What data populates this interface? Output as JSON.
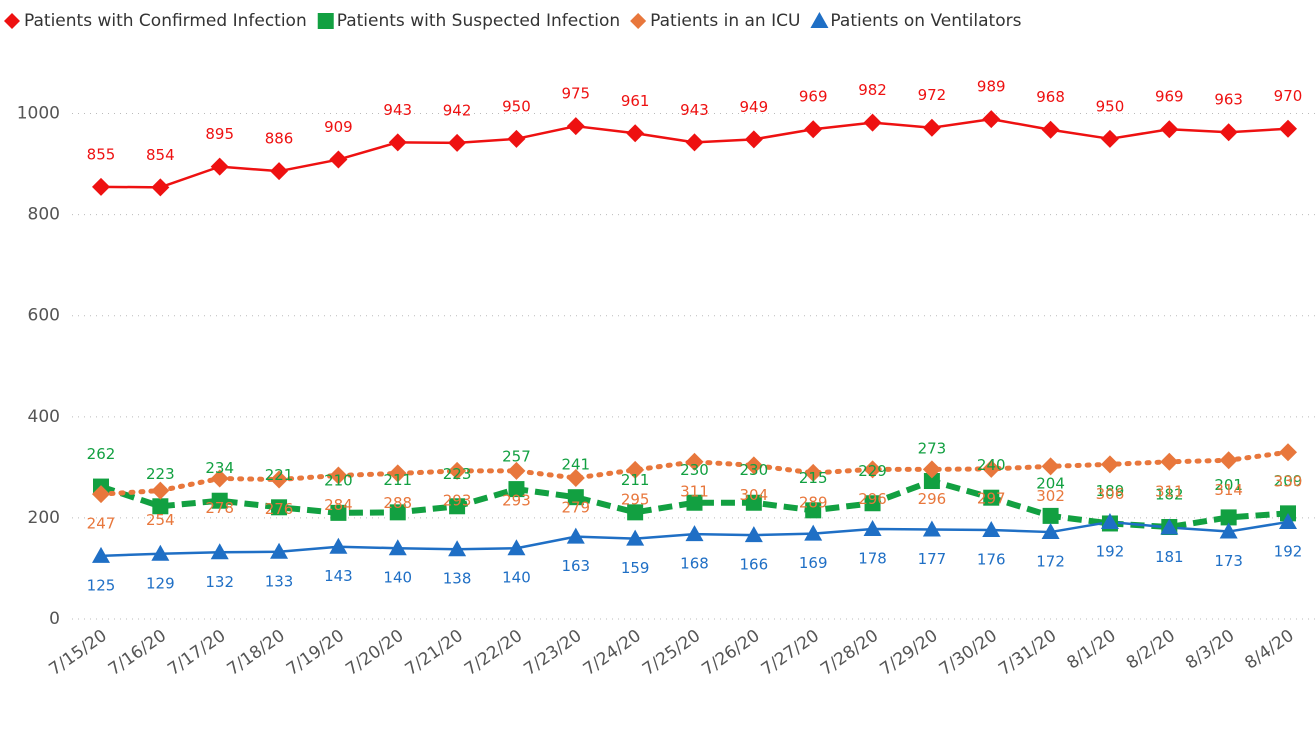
{
  "chart_data": {
    "type": "line",
    "categories": [
      "7/15/20",
      "7/16/20",
      "7/17/20",
      "7/18/20",
      "7/19/20",
      "7/20/20",
      "7/21/20",
      "7/22/20",
      "7/23/20",
      "7/24/20",
      "7/25/20",
      "7/26/20",
      "7/27/20",
      "7/28/20",
      "7/29/20",
      "7/30/20",
      "7/31/20",
      "8/1/20",
      "8/2/20",
      "8/3/20",
      "8/4/20"
    ],
    "series": [
      {
        "name": "Patients with Confirmed Infection",
        "color": "#ee1111",
        "marker": "diamond",
        "line_style": "solid",
        "label_position": "above",
        "values": [
          855,
          854,
          895,
          886,
          909,
          943,
          942,
          950,
          975,
          961,
          943,
          949,
          969,
          982,
          972,
          989,
          968,
          950,
          969,
          963,
          970
        ]
      },
      {
        "name": "Patients with Suspected Infection",
        "color": "#12a041",
        "marker": "square",
        "line_style": "dashed",
        "label_position": "above",
        "values": [
          262,
          223,
          234,
          221,
          210,
          211,
          223,
          257,
          241,
          211,
          230,
          230,
          215,
          229,
          273,
          240,
          204,
          189,
          182,
          201,
          209
        ]
      },
      {
        "name": "Patients in an ICU",
        "color": "#e8773c",
        "marker": "diamond",
        "line_style": "dotted",
        "label_position": "below",
        "values": [
          247,
          254,
          278,
          276,
          284,
          288,
          293,
          293,
          279,
          295,
          311,
          304,
          289,
          296,
          296,
          297,
          302,
          306,
          311,
          314,
          330
        ]
      },
      {
        "name": "Patients on Ventilators",
        "color": "#1f6fc5",
        "marker": "triangle",
        "line_style": "solid",
        "label_position": "below",
        "values": [
          125,
          129,
          132,
          133,
          143,
          140,
          138,
          140,
          163,
          159,
          168,
          166,
          169,
          178,
          177,
          176,
          172,
          192,
          181,
          173,
          192
        ]
      }
    ],
    "ylim": [
      0,
      1100
    ],
    "yticks": [
      0,
      200,
      400,
      600,
      800,
      1000
    ],
    "grid": true,
    "legend": "top-left"
  }
}
